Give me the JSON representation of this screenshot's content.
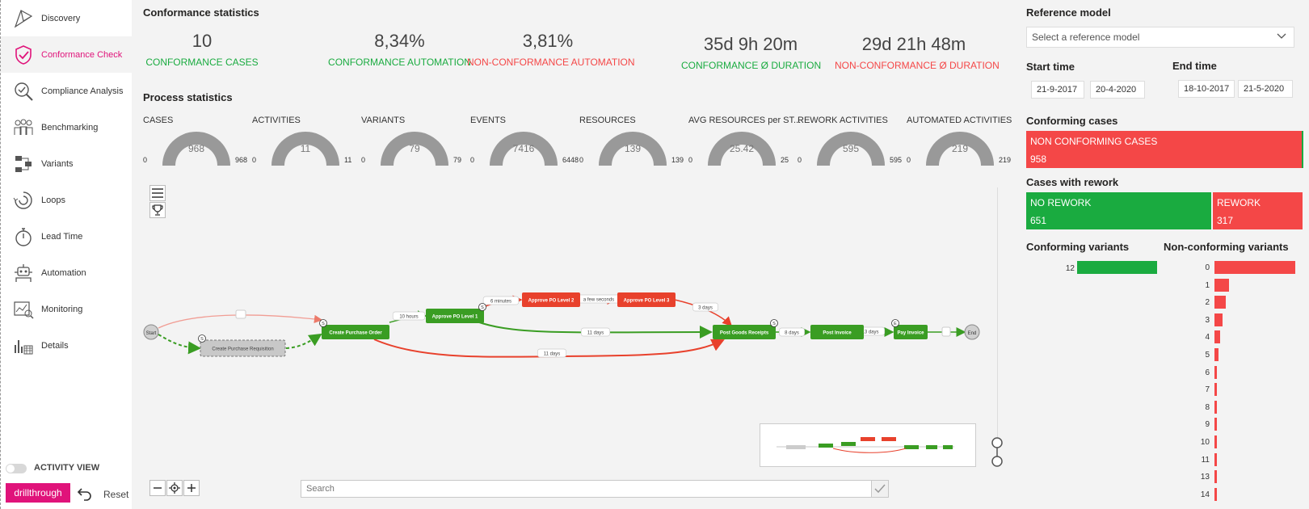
{
  "sidebar": {
    "items": [
      {
        "label": "Discovery",
        "icon": "discovery-icon"
      },
      {
        "label": "Conformance Check",
        "icon": "shield-check-icon",
        "active": true
      },
      {
        "label": "Compliance Analysis",
        "icon": "magnifier-check-icon"
      },
      {
        "label": "Benchmarking",
        "icon": "people-group-icon"
      },
      {
        "label": "Variants",
        "icon": "variants-icon"
      },
      {
        "label": "Loops",
        "icon": "loop-icon"
      },
      {
        "label": "Lead Time",
        "icon": "stopwatch-icon"
      },
      {
        "label": "Automation",
        "icon": "robot-icon"
      },
      {
        "label": "Monitoring",
        "icon": "monitoring-icon"
      },
      {
        "label": "Details",
        "icon": "details-chart-icon"
      }
    ],
    "toggle_label": "ACTIVITY VIEW",
    "drill_label": "drillthrough",
    "reset_label": "Reset"
  },
  "conformance": {
    "title": "Conformance statistics",
    "kpis": [
      {
        "value": "10",
        "label": "CONFORMANCE CASES",
        "color": "green"
      },
      {
        "value": "8,34%",
        "label": "CONFORMANCE AUTOMATION",
        "color": "green"
      },
      {
        "value": "3,81%",
        "label": "NON-CONFORMANCE AUTOMATION",
        "color": "red"
      },
      {
        "value": "35d 9h 20m",
        "label": "CONFORMANCE Ø DURATION",
        "color": "green"
      },
      {
        "value": "29d 21h 48m",
        "label": "NON-CONFORMANCE Ø DURATION",
        "color": "red"
      }
    ]
  },
  "process": {
    "title": "Process statistics",
    "gauges": [
      {
        "title": "CASES",
        "value": "968",
        "min": "0",
        "max": "968",
        "fraction": 1.0
      },
      {
        "title": "ACTIVITIES",
        "value": "11",
        "min": "0",
        "max": "11",
        "fraction": 1.0
      },
      {
        "title": "VARIANTS",
        "value": "79",
        "min": "0",
        "max": "79",
        "fraction": 1.0
      },
      {
        "title": "EVENTS",
        "value": "7416",
        "min": "0",
        "max": "6448",
        "fraction": 1.0
      },
      {
        "title": "RESOURCES",
        "value": "139",
        "min": "0",
        "max": "139",
        "fraction": 1.0
      },
      {
        "title": "AVG RESOURCES per ST...",
        "value": "25.42",
        "min": "0",
        "max": "25",
        "fraction": 1.0
      },
      {
        "title": "REWORK ACTIVITIES",
        "value": "595",
        "min": "0",
        "max": "595",
        "fraction": 1.0
      },
      {
        "title": "AUTOMATED ACTIVITIES",
        "value": "219",
        "min": "0",
        "max": "219",
        "fraction": 1.0
      }
    ]
  },
  "map": {
    "nodes": {
      "start": "Start",
      "end": "End",
      "req": "Create Purchase Requisition",
      "cpo": "Create Purchase Order",
      "apo1": "Approve PO Level 1",
      "apo2": "Approve PO Level 2",
      "apo3": "Approve PO Level 3",
      "pgr": "Post Goods Receipts",
      "pinv": "Post Invoice",
      "pay": "Pay Invoice"
    },
    "edges": {
      "e_cpo_apo1": "10 hours",
      "e_apo1_apo2": "6 minutes",
      "e_apo2_apo3": "a few seconds",
      "e_apo3_pgr": "3 days",
      "e_apo1_pgr": "11 days",
      "e_cpo_pgr": "11 days",
      "e_pgr_pinv": "8 days",
      "e_pinv_pay": "13 days"
    },
    "badges": {
      "s": "S",
      "e": "E"
    },
    "search_placeholder": "Search",
    "colors": {
      "green": "#3a9d23",
      "red": "#e8412c",
      "gray": "#c8c8c8"
    }
  },
  "right": {
    "ref_title": "Reference model",
    "ref_placeholder": "Select a reference model",
    "start_title": "Start time",
    "end_title": "End time",
    "start_from": "21-9-2017",
    "start_to": "20-4-2020",
    "end_from": "18-10-2017",
    "end_to": "21-5-2020",
    "conforming_title": "Conforming cases",
    "non_conf_label": "NON CONFORMING CASES",
    "non_conf_value": "958",
    "rework_title": "Cases with rework",
    "no_rework_label": "NO REWORK",
    "no_rework_value": "651",
    "rework_label": "REWORK",
    "rework_value": "317",
    "conf_var_title": "Conforming variants",
    "conf_var_label": "12",
    "nonconf_var_title": "Non-conforming variants",
    "nonconf_var_labels": [
      "0",
      "1",
      "2",
      "3",
      "4",
      "5",
      "6",
      "7",
      "8",
      "9",
      "10",
      "11",
      "13",
      "14"
    ],
    "nonconf_var_values": [
      100,
      18,
      14,
      10,
      7,
      5,
      3,
      3,
      3,
      3,
      3,
      3,
      3,
      3
    ]
  }
}
